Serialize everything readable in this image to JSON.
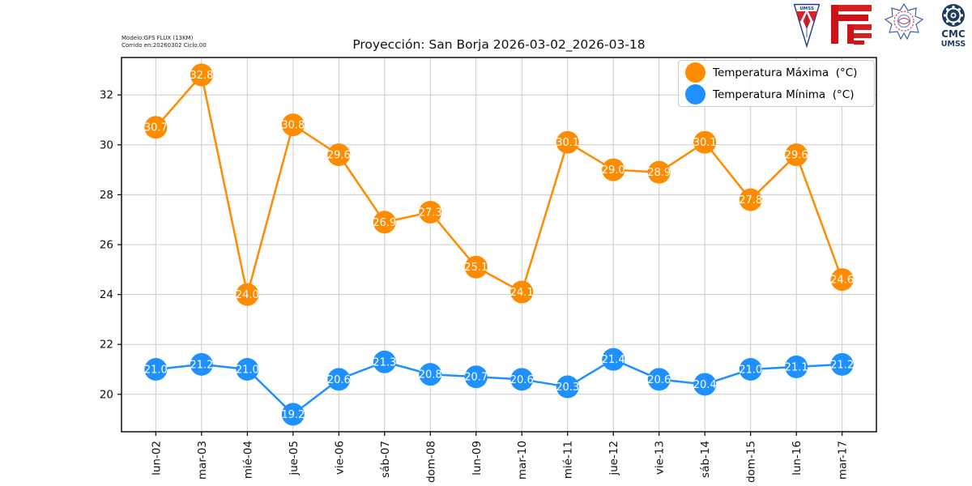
{
  "header": {
    "model_line1": "Modelo:GFS FLUX (13KM)",
    "model_line2": "Corrido en:20260302 Ciclo:00",
    "title": "Proyección: San Borja 2026-03-02_2026-03-18"
  },
  "logos": {
    "umss_pennant_text": "UMSS",
    "cmc_line1": "CMC",
    "cmc_line2": "UMSS"
  },
  "legend": {
    "entries": [
      {
        "label": "Temperatura Máxima  (°C)",
        "color": "#FF8C00"
      },
      {
        "label": "Temperatura Mínima  (°C)",
        "color": "#1E90FF"
      }
    ]
  },
  "chart_data": {
    "type": "line",
    "title": "Proyección: San Borja 2026-03-02_2026-03-18",
    "categories": [
      "lun-02",
      "mar-03",
      "mié-04",
      "jue-05",
      "vie-06",
      "sáb-07",
      "dom-08",
      "lun-09",
      "mar-10",
      "mié-11",
      "jue-12",
      "vie-13",
      "sáb-14",
      "dom-15",
      "lun-16",
      "mar-17"
    ],
    "series": [
      {
        "name": "Temperatura Máxima  (°C)",
        "color": "#FF8C00",
        "values": [
          30.7,
          32.8,
          24.0,
          30.8,
          29.6,
          26.9,
          27.3,
          25.1,
          24.1,
          30.1,
          29.0,
          28.9,
          30.1,
          27.8,
          29.6,
          24.6
        ]
      },
      {
        "name": "Temperatura Mínima  (°C)",
        "color": "#1E90FF",
        "values": [
          21.0,
          21.2,
          21.0,
          19.2,
          20.6,
          21.3,
          20.8,
          20.7,
          20.6,
          20.3,
          21.4,
          20.6,
          20.4,
          21.0,
          21.1,
          21.2
        ]
      }
    ],
    "xlabel": "",
    "ylabel": "",
    "yticks": [
      20,
      22,
      24,
      26,
      28,
      30,
      32
    ],
    "ylim": [
      18.5,
      33.5
    ],
    "grid": true,
    "grid_color": "#cccccc",
    "legend_position": "upper right",
    "marker_labels": true,
    "marker_label_color": "#ffffff"
  }
}
